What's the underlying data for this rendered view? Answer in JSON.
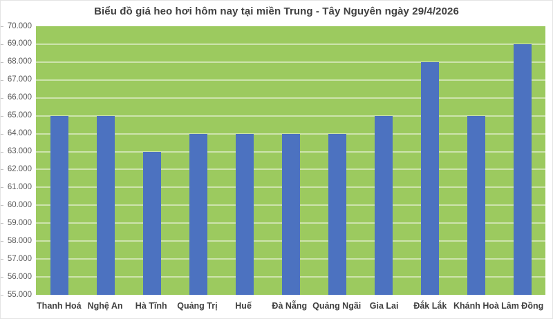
{
  "chart_data": {
    "type": "bar",
    "title": "Biểu đồ giá heo hơi hôm nay tại miền Trung - Tây Nguyên ngày 29/4/2026",
    "xlabel": "",
    "ylabel": "",
    "categories": [
      "Thanh Hoá",
      "Nghệ An",
      "Hà Tĩnh",
      "Quảng Trị",
      "Huế",
      "Đà Nẵng",
      "Quảng Ngãi",
      "Gia Lai",
      "Đắk Lắk",
      "Khánh Hoà",
      "Lâm Đồng"
    ],
    "values": [
      65000,
      65000,
      63000,
      64000,
      64000,
      64000,
      64000,
      65000,
      68000,
      65000,
      69000
    ],
    "ylim": [
      55000,
      70000
    ],
    "y_step": 1000,
    "y_ticks": [
      "70.000",
      "69.000",
      "68.000",
      "67.000",
      "66.000",
      "65.000",
      "64.000",
      "63.000",
      "62.000",
      "61.000",
      "60.000",
      "59.000",
      "58.000",
      "57.000",
      "56.000",
      "55.000"
    ],
    "grid": true,
    "legend": false,
    "colors": {
      "bar": "#4c72c0",
      "plot_background": "#9cca5f",
      "gridline": "#cde3ad",
      "title_text": "#404040",
      "y_tick_text": "#595959",
      "x_tick_text": "#404040",
      "page_border": "#e3e3e3"
    }
  }
}
